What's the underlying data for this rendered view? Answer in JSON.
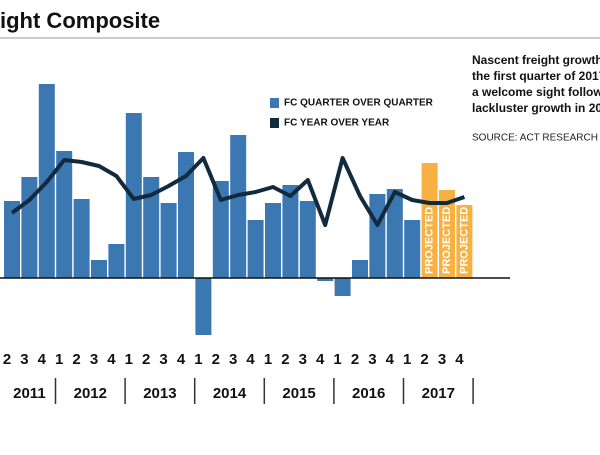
{
  "chart_data": {
    "type": "bar",
    "title": "ight Composite",
    "annotation_lines": [
      "Nascent freight growth i",
      "the first quarter of 2017",
      "a welcome sight followi",
      "lackluster growth in 201"
    ],
    "source": "SOURCE: ACT RESEARCH",
    "categories": [
      "2",
      "3",
      "4",
      "1",
      "2",
      "3",
      "4",
      "1",
      "2",
      "3",
      "4",
      "1",
      "2",
      "3",
      "4",
      "1",
      "2",
      "3",
      "4",
      "1",
      "2",
      "3",
      "4",
      "1",
      "2",
      "3",
      "4"
    ],
    "years": [
      "2011",
      "2012",
      "2013",
      "2014",
      "2015",
      "2016",
      "2017"
    ],
    "ylim": [
      -6.7,
      24
    ],
    "series": [
      {
        "name": "FC QUARTER OVER QUARTER",
        "type": "bar",
        "color": "#3b78b2",
        "values": [
          7.7,
          10.1,
          19.4,
          12.7,
          7.9,
          1.8,
          3.4,
          16.5,
          10.1,
          7.5,
          12.6,
          -5.7,
          9.7,
          14.3,
          5.8,
          7.5,
          9.3,
          7.7,
          -0.3,
          -1.8,
          1.8,
          8.4,
          8.9,
          5.8,
          11.5,
          8.8,
          7.3
        ],
        "value_colors": [
          null,
          null,
          null,
          null,
          null,
          null,
          null,
          null,
          null,
          null,
          null,
          null,
          null,
          null,
          null,
          null,
          null,
          null,
          null,
          null,
          null,
          null,
          null,
          null,
          "#f6b142",
          "#f6b142",
          "#f6b142"
        ],
        "bar_labels": [
          null,
          null,
          null,
          null,
          null,
          null,
          null,
          null,
          null,
          null,
          null,
          null,
          null,
          null,
          null,
          null,
          null,
          null,
          null,
          null,
          null,
          null,
          null,
          null,
          "PROJECTED",
          "PROJECTED",
          "PROJECTED"
        ]
      },
      {
        "name": "FC YEAR OVER YEAR",
        "type": "line",
        "color": "#122a3e",
        "values": [
          6.5,
          7.8,
          9.6,
          11.8,
          11.6,
          11.2,
          10.2,
          7.9,
          8.3,
          9.2,
          10.2,
          12.0,
          7.8,
          8.3,
          8.6,
          9.1,
          8.2,
          9.8,
          5.3,
          12.0,
          8.2,
          5.3,
          8.6,
          7.8,
          7.5,
          7.5,
          8.1
        ]
      }
    ]
  }
}
